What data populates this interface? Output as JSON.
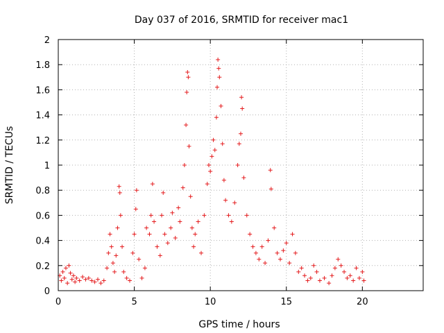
{
  "chart_data": {
    "type": "scatter",
    "title": "Day 037 of 2016, SRMTID for receiver mac1",
    "xlabel": "GPS time / hours",
    "ylabel": "SRMTID / TECUs",
    "xlim": [
      0,
      24
    ],
    "ylim": [
      0,
      2
    ],
    "xticks": [
      0,
      5,
      10,
      15,
      20
    ],
    "yticks": [
      0,
      0.2,
      0.4,
      0.6,
      0.8,
      1,
      1.2,
      1.4,
      1.6,
      1.8,
      2
    ],
    "grid": true,
    "marker": "+",
    "color": "#e41a1c",
    "series": [
      {
        "name": "SRMTID",
        "points": [
          [
            0.1,
            0.12
          ],
          [
            0.2,
            0.08
          ],
          [
            0.3,
            0.15
          ],
          [
            0.4,
            0.1
          ],
          [
            0.5,
            0.18
          ],
          [
            0.6,
            0.06
          ],
          [
            0.7,
            0.2
          ],
          [
            0.8,
            0.14
          ],
          [
            0.9,
            0.09
          ],
          [
            1.0,
            0.12
          ],
          [
            1.1,
            0.07
          ],
          [
            1.2,
            0.1
          ],
          [
            1.4,
            0.08
          ],
          [
            1.6,
            0.11
          ],
          [
            1.8,
            0.09
          ],
          [
            2.0,
            0.1
          ],
          [
            2.2,
            0.08
          ],
          [
            2.4,
            0.07
          ],
          [
            2.6,
            0.09
          ],
          [
            2.8,
            0.06
          ],
          [
            3.0,
            0.08
          ],
          [
            3.2,
            0.18
          ],
          [
            3.3,
            0.3
          ],
          [
            3.4,
            0.45
          ],
          [
            3.5,
            0.35
          ],
          [
            3.6,
            0.22
          ],
          [
            3.7,
            0.15
          ],
          [
            3.8,
            0.28
          ],
          [
            3.9,
            0.5
          ],
          [
            4.0,
            0.83
          ],
          [
            4.05,
            0.78
          ],
          [
            4.1,
            0.6
          ],
          [
            4.2,
            0.35
          ],
          [
            4.3,
            0.15
          ],
          [
            4.5,
            0.1
          ],
          [
            4.7,
            0.08
          ],
          [
            4.9,
            0.3
          ],
          [
            5.0,
            0.45
          ],
          [
            5.1,
            0.65
          ],
          [
            5.15,
            0.8
          ],
          [
            5.3,
            0.25
          ],
          [
            5.5,
            0.1
          ],
          [
            5.7,
            0.18
          ],
          [
            5.8,
            0.5
          ],
          [
            6.0,
            0.45
          ],
          [
            6.1,
            0.6
          ],
          [
            6.2,
            0.85
          ],
          [
            6.3,
            0.55
          ],
          [
            6.5,
            0.35
          ],
          [
            6.7,
            0.28
          ],
          [
            6.8,
            0.6
          ],
          [
            6.9,
            0.78
          ],
          [
            7.0,
            0.45
          ],
          [
            7.2,
            0.38
          ],
          [
            7.4,
            0.5
          ],
          [
            7.5,
            0.62
          ],
          [
            7.7,
            0.42
          ],
          [
            7.9,
            0.66
          ],
          [
            8.0,
            0.55
          ],
          [
            8.2,
            0.82
          ],
          [
            8.3,
            1.0
          ],
          [
            8.4,
            1.32
          ],
          [
            8.45,
            1.58
          ],
          [
            8.5,
            1.74
          ],
          [
            8.55,
            1.7
          ],
          [
            8.6,
            1.15
          ],
          [
            8.7,
            0.75
          ],
          [
            8.8,
            0.5
          ],
          [
            8.9,
            0.35
          ],
          [
            9.0,
            0.45
          ],
          [
            9.2,
            0.55
          ],
          [
            9.4,
            0.3
          ],
          [
            9.6,
            0.6
          ],
          [
            9.8,
            0.85
          ],
          [
            9.9,
            1.0
          ],
          [
            10.0,
            0.95
          ],
          [
            10.1,
            1.07
          ],
          [
            10.2,
            1.2
          ],
          [
            10.3,
            1.12
          ],
          [
            10.4,
            1.38
          ],
          [
            10.45,
            1.62
          ],
          [
            10.5,
            1.84
          ],
          [
            10.55,
            1.77
          ],
          [
            10.6,
            1.7
          ],
          [
            10.7,
            1.47
          ],
          [
            10.8,
            1.17
          ],
          [
            10.9,
            0.88
          ],
          [
            11.0,
            0.72
          ],
          [
            11.2,
            0.6
          ],
          [
            11.4,
            0.55
          ],
          [
            11.6,
            0.7
          ],
          [
            11.8,
            1.0
          ],
          [
            11.9,
            1.17
          ],
          [
            12.0,
            1.25
          ],
          [
            12.05,
            1.54
          ],
          [
            12.1,
            1.45
          ],
          [
            12.2,
            0.9
          ],
          [
            12.4,
            0.6
          ],
          [
            12.6,
            0.45
          ],
          [
            12.8,
            0.35
          ],
          [
            13.0,
            0.3
          ],
          [
            13.2,
            0.25
          ],
          [
            13.4,
            0.35
          ],
          [
            13.6,
            0.22
          ],
          [
            13.8,
            0.4
          ],
          [
            13.95,
            0.96
          ],
          [
            14.0,
            0.81
          ],
          [
            14.2,
            0.5
          ],
          [
            14.4,
            0.3
          ],
          [
            14.6,
            0.25
          ],
          [
            14.8,
            0.32
          ],
          [
            15.0,
            0.38
          ],
          [
            15.2,
            0.22
          ],
          [
            15.4,
            0.45
          ],
          [
            15.6,
            0.3
          ],
          [
            15.8,
            0.15
          ],
          [
            16.0,
            0.18
          ],
          [
            16.2,
            0.12
          ],
          [
            16.4,
            0.08
          ],
          [
            16.6,
            0.1
          ],
          [
            16.8,
            0.2
          ],
          [
            17.0,
            0.15
          ],
          [
            17.2,
            0.08
          ],
          [
            17.5,
            0.1
          ],
          [
            17.8,
            0.06
          ],
          [
            18.0,
            0.12
          ],
          [
            18.2,
            0.18
          ],
          [
            18.4,
            0.25
          ],
          [
            18.6,
            0.2
          ],
          [
            18.8,
            0.15
          ],
          [
            19.0,
            0.1
          ],
          [
            19.2,
            0.12
          ],
          [
            19.4,
            0.08
          ],
          [
            19.6,
            0.18
          ],
          [
            19.8,
            0.1
          ],
          [
            20.0,
            0.15
          ],
          [
            20.1,
            0.08
          ]
        ]
      }
    ]
  }
}
